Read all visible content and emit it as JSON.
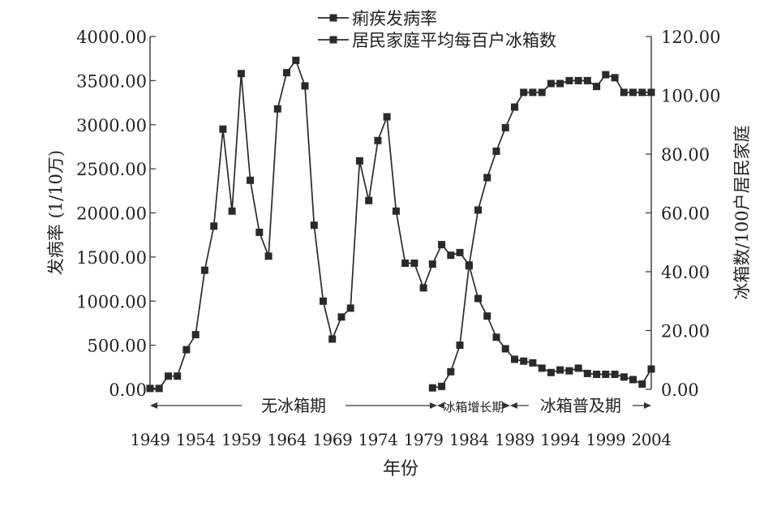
{
  "chart_data": {
    "type": "line",
    "xlabel": "年份",
    "ylabel_left": "发病率 (1/10万)",
    "ylabel_right": "冰箱数/100户居民家庭",
    "ylim_left": [
      0,
      4000
    ],
    "ylim_right": [
      0,
      120
    ],
    "xlim": [
      1949,
      2004
    ],
    "yticks_left": [
      "0.00",
      "500.00",
      "1000.00",
      "1500.00",
      "2000.00",
      "2500.00",
      "3000.00",
      "3500.00",
      "4000.00"
    ],
    "yticks_right": [
      "0.00",
      "20.00",
      "40.00",
      "60.00",
      "80.00",
      "100.00",
      "120.00"
    ],
    "xticks": [
      "1949",
      "1954",
      "1959",
      "1964",
      "1969",
      "1974",
      "1979",
      "1984",
      "1989",
      "1994",
      "1999",
      "2004"
    ],
    "legend": [
      "痢疾发病率",
      "居民家庭平均每百户冰箱数"
    ],
    "periods": [
      {
        "label": "无冰箱期",
        "start": 1949,
        "end": 1980.5
      },
      {
        "label": "冰箱增长期",
        "start": 1980.5,
        "end": 1988.5
      },
      {
        "label": "冰箱普及期",
        "start": 1988.5,
        "end": 2004
      }
    ],
    "x": [
      1949,
      1950,
      1951,
      1952,
      1953,
      1954,
      1955,
      1956,
      1957,
      1958,
      1959,
      1960,
      1961,
      1962,
      1963,
      1964,
      1965,
      1966,
      1967,
      1968,
      1969,
      1970,
      1971,
      1972,
      1973,
      1974,
      1975,
      1976,
      1977,
      1978,
      1979,
      1980,
      1981,
      1982,
      1983,
      1984,
      1985,
      1986,
      1987,
      1988,
      1989,
      1990,
      1991,
      1992,
      1993,
      1994,
      1995,
      1996,
      1997,
      1998,
      1999,
      2000,
      2001,
      2002,
      2003,
      2004
    ],
    "series": [
      {
        "name": "痢疾发病率",
        "axis": "left",
        "values": [
          10,
          10,
          150,
          150,
          450,
          620,
          1350,
          1850,
          2950,
          2020,
          3580,
          2370,
          1780,
          1510,
          3180,
          3590,
          3730,
          3440,
          1860,
          1000,
          570,
          820,
          920,
          2590,
          2140,
          2820,
          3090,
          2020,
          1430,
          1430,
          1150,
          1420,
          1640,
          1520,
          1550,
          1410,
          1030,
          830,
          590,
          460,
          340,
          320,
          300,
          240,
          190,
          220,
          210,
          240,
          180,
          170,
          170,
          170,
          140,
          110,
          60,
          230
        ]
      },
      {
        "name": "居民家庭平均每百户冰箱数",
        "axis": "right",
        "values": [
          null,
          null,
          null,
          null,
          null,
          null,
          null,
          null,
          null,
          null,
          null,
          null,
          null,
          null,
          null,
          null,
          null,
          null,
          null,
          null,
          null,
          null,
          null,
          null,
          null,
          null,
          null,
          null,
          null,
          null,
          null,
          0.5,
          1,
          6,
          15,
          42,
          61,
          72,
          81,
          89,
          96,
          101,
          101,
          101,
          104,
          104,
          105,
          105,
          105,
          103,
          107,
          106,
          101,
          101,
          101,
          101
        ]
      }
    ]
  }
}
